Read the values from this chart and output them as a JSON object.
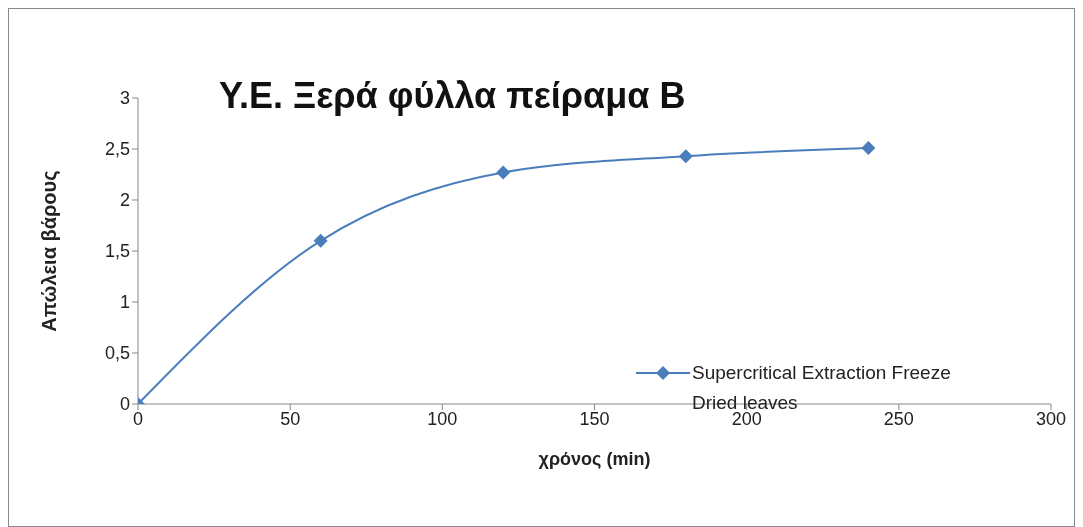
{
  "chart_data": {
    "type": "line",
    "title": "Υ.Ε. Ξερά φύλλα πείραμα Β",
    "xlabel": "χρόνος (min)",
    "ylabel": "Απώλεια βάρους",
    "x": [
      0,
      60,
      120,
      180,
      240
    ],
    "series": [
      {
        "name": "Supercritical Extraction Freeze Dried leaves",
        "color": "#4a7ebb",
        "values": [
          0,
          1.6,
          2.27,
          2.43,
          2.51
        ]
      }
    ],
    "xlim": [
      0,
      300
    ],
    "xticks": [
      0,
      50,
      100,
      150,
      200,
      250,
      300
    ],
    "ylim": [
      0,
      3
    ],
    "yticks": [
      0,
      {
        "value": 0.5,
        "label": "0,5"
      },
      1,
      {
        "value": 1.5,
        "label": "1,5"
      },
      2,
      {
        "value": 2.5,
        "label": "2,5"
      },
      3
    ],
    "grid": false,
    "legend": "right",
    "marker": "diamond",
    "line_style": "solid"
  }
}
